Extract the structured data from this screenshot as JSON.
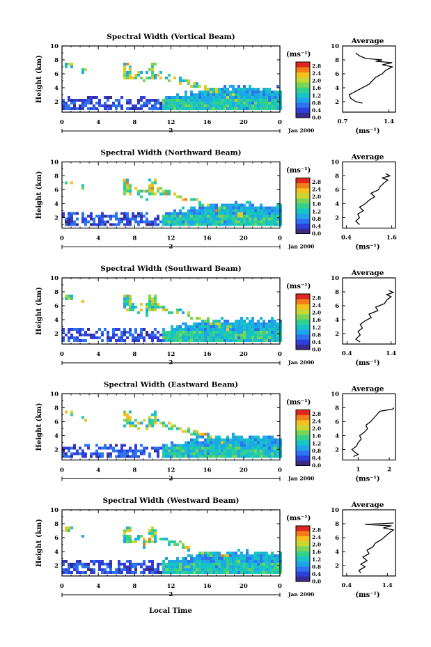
{
  "figure": {
    "date_label": "Jan 2000",
    "day_label": "2",
    "xlabel": "Local Time",
    "ylabel": "Height (km)",
    "unit_label": "(ms⁻¹)",
    "average_title": "Average",
    "average_unit": "(ms⁻¹)"
  },
  "colorscale": {
    "ticks": [
      "0.0",
      "0.4",
      "0.8",
      "1.2",
      "1.6",
      "2.0",
      "2.4",
      "2.8"
    ],
    "colors": [
      "#3a2a8a",
      "#2f3fd8",
      "#2d74f0",
      "#1fa6e8",
      "#17c4c4",
      "#35d08c",
      "#7ad455",
      "#c8d830",
      "#f2c020",
      "#f07d18",
      "#e0261d"
    ]
  },
  "chart_data": [
    {
      "type": "heatmap",
      "title": "Spectral Width (Vertical Beam)",
      "xlabel": "Local Time",
      "ylabel": "Height (km)",
      "xlim": [
        0,
        24
      ],
      "ylim": [
        0.5,
        10
      ],
      "xticks": [
        "0",
        "4",
        "8",
        "12",
        "16",
        "20",
        "0"
      ],
      "yticks": [
        "2",
        "4",
        "6",
        "8",
        "10"
      ],
      "colorbar": {
        "label": "(ms⁻¹)",
        "range": [
          0,
          3.0
        ]
      },
      "average": {
        "title": "Average",
        "xlabel": "(ms⁻¹)",
        "xticks": [
          "0.7",
          "1.4"
        ],
        "xlim": [
          0.7,
          1.5
        ],
        "profile": [
          [
            1.0,
            1.8
          ],
          [
            0.9,
            2.0
          ],
          [
            0.82,
            2.5
          ],
          [
            0.8,
            3.0
          ],
          [
            0.9,
            3.5
          ],
          [
            1.0,
            4.0
          ],
          [
            1.1,
            4.5
          ],
          [
            1.15,
            5.0
          ],
          [
            1.2,
            5.5
          ],
          [
            1.3,
            6.0
          ],
          [
            1.35,
            6.5
          ],
          [
            1.45,
            7.0
          ],
          [
            1.3,
            7.3
          ],
          [
            1.45,
            7.6
          ],
          [
            1.2,
            7.8
          ],
          [
            1.3,
            8.0
          ],
          [
            1.05,
            8.2
          ],
          [
            0.95,
            8.6
          ],
          [
            0.9,
            9.0
          ]
        ]
      }
    },
    {
      "type": "heatmap",
      "title": "Spectral Width (Northward Beam)",
      "xlabel": "Local Time",
      "ylabel": "Height (km)",
      "xlim": [
        0,
        24
      ],
      "ylim": [
        0.5,
        10
      ],
      "xticks": [
        "0",
        "4",
        "8",
        "12",
        "16",
        "20",
        "0"
      ],
      "yticks": [
        "2",
        "4",
        "6",
        "8",
        "10"
      ],
      "colorbar": {
        "label": "(ms⁻¹)",
        "range": [
          0,
          3.0
        ]
      },
      "average": {
        "title": "Average",
        "xlabel": "(ms⁻¹)",
        "xticks": [
          "0.4",
          "1.6"
        ],
        "xlim": [
          0.3,
          1.7
        ],
        "profile": [
          [
            0.75,
            1.0
          ],
          [
            0.65,
            1.5
          ],
          [
            0.75,
            2.0
          ],
          [
            0.7,
            2.5
          ],
          [
            0.85,
            3.0
          ],
          [
            0.75,
            3.5
          ],
          [
            0.9,
            4.0
          ],
          [
            1.0,
            4.5
          ],
          [
            1.15,
            5.0
          ],
          [
            1.05,
            5.5
          ],
          [
            1.25,
            6.0
          ],
          [
            1.3,
            6.5
          ],
          [
            1.4,
            7.0
          ],
          [
            1.5,
            7.4
          ],
          [
            1.35,
            7.7
          ],
          [
            1.55,
            8.0
          ],
          [
            1.45,
            8.3
          ]
        ]
      }
    },
    {
      "type": "heatmap",
      "title": "Spectral Width (Southward Beam)",
      "xlabel": "Local Time",
      "ylabel": "Height (km)",
      "xlim": [
        0,
        24
      ],
      "ylim": [
        0.5,
        10
      ],
      "xticks": [
        "0",
        "4",
        "8",
        "12",
        "16",
        "20",
        "0"
      ],
      "yticks": [
        "2",
        "4",
        "6",
        "8",
        "10"
      ],
      "colorbar": {
        "label": "(ms⁻¹)",
        "range": [
          0,
          3.0
        ]
      },
      "average": {
        "title": "Average",
        "xlabel": "(ms⁻¹)",
        "xticks": [
          "0.4",
          "1.4"
        ],
        "xlim": [
          0.3,
          1.5
        ],
        "profile": [
          [
            0.7,
            0.8
          ],
          [
            0.6,
            1.2
          ],
          [
            0.7,
            1.8
          ],
          [
            0.65,
            2.3
          ],
          [
            0.75,
            2.8
          ],
          [
            0.7,
            3.3
          ],
          [
            0.8,
            3.8
          ],
          [
            0.95,
            4.3
          ],
          [
            0.9,
            4.8
          ],
          [
            1.1,
            5.3
          ],
          [
            1.05,
            5.8
          ],
          [
            1.25,
            6.3
          ],
          [
            1.3,
            6.8
          ],
          [
            1.4,
            7.3
          ],
          [
            1.3,
            7.6
          ],
          [
            1.45,
            7.9
          ],
          [
            1.35,
            8.2
          ]
        ]
      }
    },
    {
      "type": "heatmap",
      "title": "Spectral Width (Eastward Beam)",
      "xlabel": "Local Time",
      "ylabel": "Height (km)",
      "xlim": [
        0,
        24
      ],
      "ylim": [
        0.5,
        10
      ],
      "xticks": [
        "0",
        "4",
        "8",
        "12",
        "16",
        "20",
        "0"
      ],
      "yticks": [
        "2",
        "4",
        "6",
        "8",
        "10"
      ],
      "colorbar": {
        "label": "(ms⁻¹)",
        "range": [
          0,
          3.0
        ]
      },
      "average": {
        "title": "Average",
        "xlabel": "(ms⁻¹)",
        "xticks": [
          "1",
          "2"
        ],
        "xlim": [
          0.5,
          2.2
        ],
        "profile": [
          [
            0.85,
            1.0
          ],
          [
            1.0,
            1.3
          ],
          [
            0.9,
            1.6
          ],
          [
            0.8,
            2.0
          ],
          [
            0.95,
            2.5
          ],
          [
            1.0,
            3.0
          ],
          [
            1.1,
            3.5
          ],
          [
            1.05,
            4.0
          ],
          [
            1.2,
            4.5
          ],
          [
            1.3,
            5.0
          ],
          [
            1.25,
            5.5
          ],
          [
            1.4,
            6.0
          ],
          [
            1.5,
            6.5
          ],
          [
            1.6,
            7.0
          ],
          [
            1.7,
            7.5
          ],
          [
            2.1,
            7.8
          ],
          [
            2.15,
            8.0
          ]
        ]
      }
    },
    {
      "type": "heatmap",
      "title": "Spectral Width (Westward Beam)",
      "xlabel": "Local Time",
      "ylabel": "Height (km)",
      "xlim": [
        0,
        24
      ],
      "ylim": [
        0.5,
        10
      ],
      "xticks": [
        "0",
        "4",
        "8",
        "12",
        "16",
        "20",
        "0"
      ],
      "yticks": [
        "2",
        "4",
        "6",
        "8",
        "10"
      ],
      "colorbar": {
        "label": "(ms⁻¹)",
        "range": [
          0,
          3.0
        ]
      },
      "average": {
        "title": "Average",
        "xlabel": "(ms⁻¹)",
        "xticks": [
          "0.4",
          "1.4"
        ],
        "xlim": [
          0.3,
          1.6
        ],
        "profile": [
          [
            0.75,
            0.9
          ],
          [
            0.7,
            1.3
          ],
          [
            0.85,
            1.8
          ],
          [
            0.75,
            2.2
          ],
          [
            0.9,
            2.7
          ],
          [
            0.8,
            3.2
          ],
          [
            0.95,
            3.7
          ],
          [
            0.9,
            4.2
          ],
          [
            1.05,
            4.7
          ],
          [
            1.1,
            5.2
          ],
          [
            1.25,
            5.7
          ],
          [
            1.35,
            6.2
          ],
          [
            1.45,
            6.7
          ],
          [
            1.55,
            7.1
          ],
          [
            1.3,
            7.4
          ],
          [
            1.5,
            7.7
          ],
          [
            0.85,
            7.9
          ],
          [
            1.55,
            8.1
          ]
        ]
      }
    }
  ]
}
